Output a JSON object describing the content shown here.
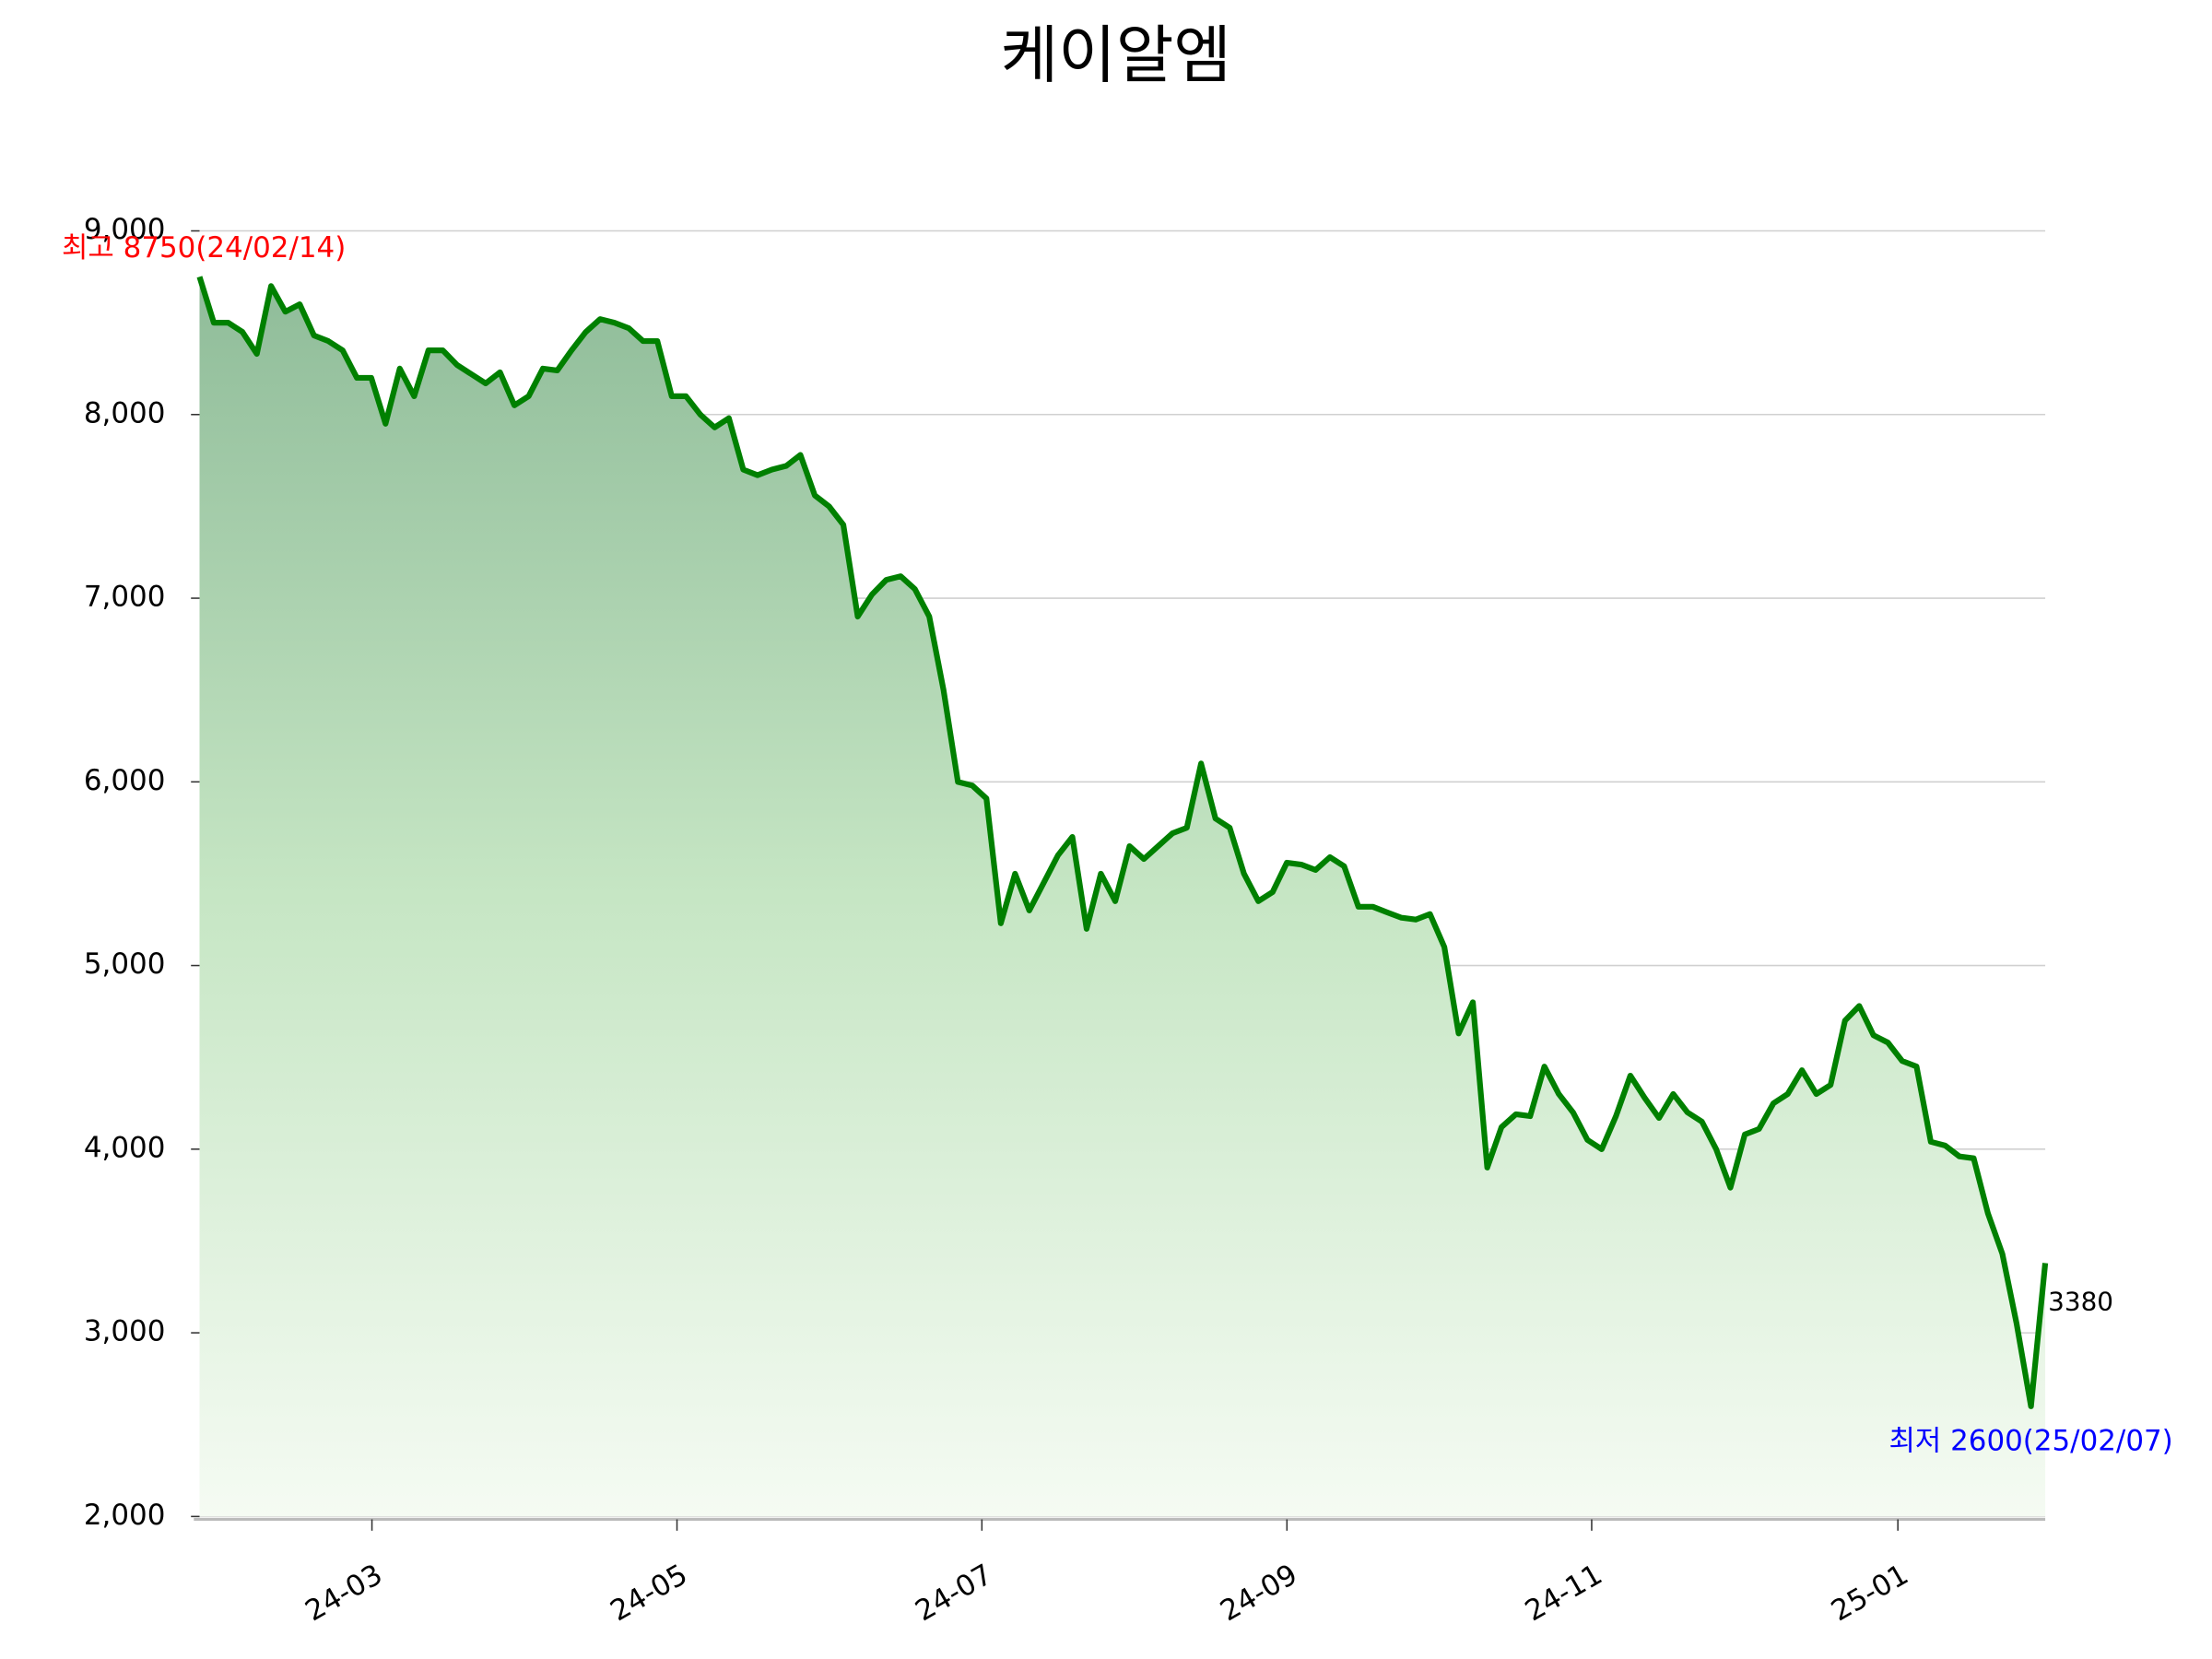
{
  "chart_data": {
    "type": "line",
    "title": "케이알엠",
    "series": [
      {
        "name": "케이알엠",
        "color": "#008000",
        "values": [
          8750,
          8500,
          8500,
          8450,
          8330,
          8700,
          8560,
          8600,
          8430,
          8400,
          8350,
          8200,
          8200,
          7950,
          8250,
          8100,
          8350,
          8350,
          8270,
          8220,
          8170,
          8230,
          8050,
          8100,
          8250,
          8240,
          8350,
          8450,
          8520,
          8500,
          8470,
          8400,
          8400,
          8100,
          8100,
          8000,
          7930,
          7980,
          7700,
          7670,
          7700,
          7720,
          7780,
          7560,
          7500,
          7400,
          6900,
          7020,
          7100,
          7120,
          7050,
          6900,
          6500,
          6000,
          5980,
          5910,
          5230,
          5500,
          5300,
          5450,
          5600,
          5700,
          5200,
          5500,
          5350,
          5650,
          5580,
          5650,
          5720,
          5750,
          6100,
          5800,
          5750,
          5500,
          5350,
          5400,
          5560,
          5550,
          5520,
          5590,
          5540,
          5320,
          5320,
          5290,
          5260,
          5250,
          5280,
          5100,
          4630,
          4800,
          3900,
          4120,
          4190,
          4180,
          4450,
          4300,
          4200,
          4050,
          4000,
          4180,
          4400,
          4280,
          4170,
          4300,
          4200,
          4150,
          4000,
          3790,
          4080,
          4110,
          4250,
          4300,
          4430,
          4300,
          4350,
          4700,
          4780,
          4620,
          4580,
          4480,
          4450,
          4040,
          4020,
          3960,
          3950,
          3650,
          3430,
          3050,
          2600,
          3380
        ]
      }
    ],
    "xlim": [
      0,
      129
    ],
    "xticks": [
      {
        "value": 12.05,
        "label": "24-03"
      },
      {
        "value": 33.37,
        "label": "24-05"
      },
      {
        "value": 54.68,
        "label": "24-07"
      },
      {
        "value": 76.0,
        "label": "24-09"
      },
      {
        "value": 97.3,
        "label": "24-11"
      },
      {
        "value": 118.7,
        "label": "25-01"
      }
    ],
    "ylim": [
      2000,
      9000
    ],
    "yticks": [
      {
        "value": 2000,
        "label": "2,000"
      },
      {
        "value": 3000,
        "label": "3,000"
      },
      {
        "value": 4000,
        "label": "4,000"
      },
      {
        "value": 5000,
        "label": "5,000"
      },
      {
        "value": 6000,
        "label": "6,000"
      },
      {
        "value": 7000,
        "label": "7,000"
      },
      {
        "value": 8000,
        "label": "8,000"
      },
      {
        "value": 9000,
        "label": "9,000"
      }
    ],
    "grid": true,
    "max_annotation": {
      "text": "최고 8750(24/02/14)",
      "color": "#ff0000"
    },
    "min_annotation": {
      "text": "최저 2600(25/02/07)",
      "color": "#0000ff"
    }
  }
}
